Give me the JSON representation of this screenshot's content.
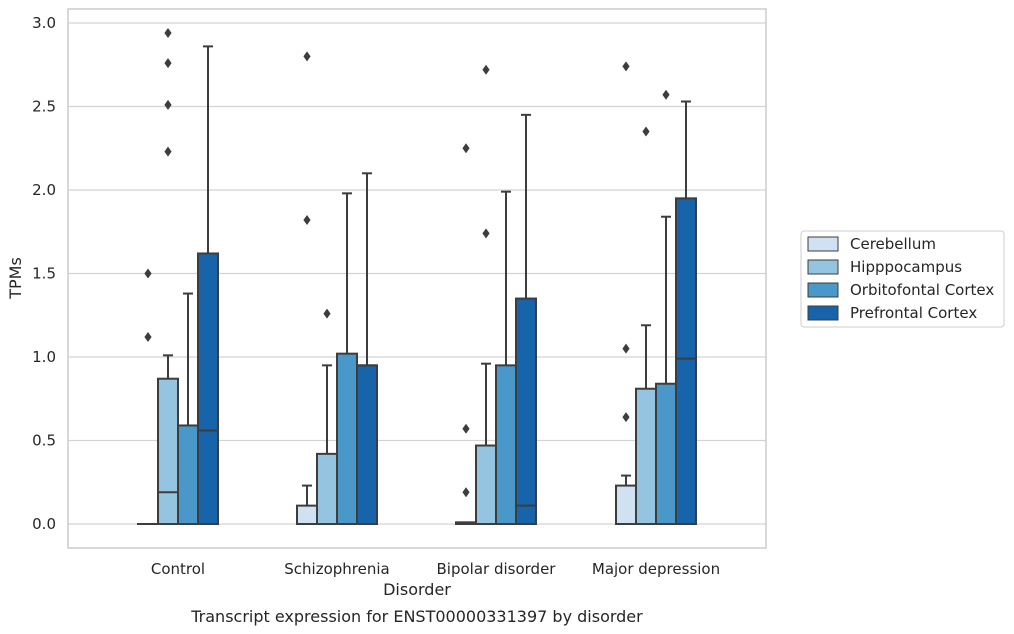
{
  "chart_data": {
    "type": "box",
    "title": "",
    "caption": "Transcript expression for ENST00000331397 by disorder",
    "xlabel": "Disorder",
    "ylabel": "TPMs",
    "ylim": [
      -0.14,
      3.09
    ],
    "yticks": [
      "0.0",
      "0.5",
      "1.0",
      "1.5",
      "2.0",
      "2.5",
      "3.0"
    ],
    "ytick_values": [
      0,
      0.5,
      1.0,
      1.5,
      2.0,
      2.5,
      3.0
    ],
    "grid": "horizontal",
    "legend_position": "right",
    "categories": [
      "Control",
      "Schizophrenia",
      "Bipolar disorder",
      "Major depression"
    ],
    "series": [
      {
        "name": "Cerebellum",
        "color": "#d0e1f2",
        "boxes": [
          {
            "q1": 0,
            "median": 0,
            "q3": 0,
            "whisker_low": 0,
            "whisker_high": 0,
            "outliers": [
              1.12,
              1.5
            ]
          },
          {
            "q1": 0,
            "median": 0,
            "q3": 0.11,
            "whisker_low": 0,
            "whisker_high": 0.23,
            "outliers": [
              1.82,
              2.8
            ]
          },
          {
            "q1": 0,
            "median": 0,
            "q3": 0.01,
            "whisker_low": 0,
            "whisker_high": 0.01,
            "outliers": [
              0.19,
              0.57,
              2.25
            ]
          },
          {
            "q1": 0,
            "median": 0,
            "q3": 0.23,
            "whisker_low": 0,
            "whisker_high": 0.29,
            "outliers": [
              0.64,
              1.05,
              2.74
            ]
          }
        ]
      },
      {
        "name": "Hipppocampus",
        "color": "#94c4df",
        "boxes": [
          {
            "q1": 0,
            "median": 0.19,
            "q3": 0.87,
            "whisker_low": 0,
            "whisker_high": 1.01,
            "outliers": [
              2.23,
              2.51,
              2.76,
              2.94
            ]
          },
          {
            "q1": 0,
            "median": 0,
            "q3": 0.42,
            "whisker_low": 0,
            "whisker_high": 0.95,
            "outliers": [
              1.26
            ]
          },
          {
            "q1": 0,
            "median": 0,
            "q3": 0.47,
            "whisker_low": 0,
            "whisker_high": 0.96,
            "outliers": [
              1.74,
              2.72
            ]
          },
          {
            "q1": 0,
            "median": 0,
            "q3": 0.81,
            "whisker_low": 0,
            "whisker_high": 1.19,
            "outliers": [
              2.35
            ]
          }
        ]
      },
      {
        "name": "Orbitofontal Cortex",
        "color": "#4a98c9",
        "boxes": [
          {
            "q1": 0,
            "median": 0,
            "q3": 0.59,
            "whisker_low": 0,
            "whisker_high": 1.38,
            "outliers": []
          },
          {
            "q1": 0,
            "median": 0,
            "q3": 1.02,
            "whisker_low": 0,
            "whisker_high": 1.98,
            "outliers": []
          },
          {
            "q1": 0,
            "median": 0,
            "q3": 0.95,
            "whisker_low": 0,
            "whisker_high": 1.99,
            "outliers": []
          },
          {
            "q1": 0,
            "median": 0,
            "q3": 0.84,
            "whisker_low": 0,
            "whisker_high": 1.84,
            "outliers": [
              2.57
            ]
          }
        ]
      },
      {
        "name": "Prefrontal Cortex",
        "color": "#1764ab",
        "boxes": [
          {
            "q1": 0,
            "median": 0.56,
            "q3": 1.62,
            "whisker_low": 0,
            "whisker_high": 2.86,
            "outliers": []
          },
          {
            "q1": 0,
            "median": 0.95,
            "q3": 0.95,
            "whisker_low": 0,
            "whisker_high": 2.1,
            "outliers": []
          },
          {
            "q1": 0,
            "median": 0.11,
            "q3": 1.35,
            "whisker_low": 0,
            "whisker_high": 2.45,
            "outliers": []
          },
          {
            "q1": 0,
            "median": 0.99,
            "q3": 1.95,
            "whisker_low": 0,
            "whisker_high": 2.53,
            "outliers": []
          }
        ]
      }
    ],
    "colors": {
      "grid": "#d3d3d3",
      "spine": "#cccccc",
      "box_edge": "#3d3d3d",
      "outlier": "#3d3d3d"
    }
  }
}
